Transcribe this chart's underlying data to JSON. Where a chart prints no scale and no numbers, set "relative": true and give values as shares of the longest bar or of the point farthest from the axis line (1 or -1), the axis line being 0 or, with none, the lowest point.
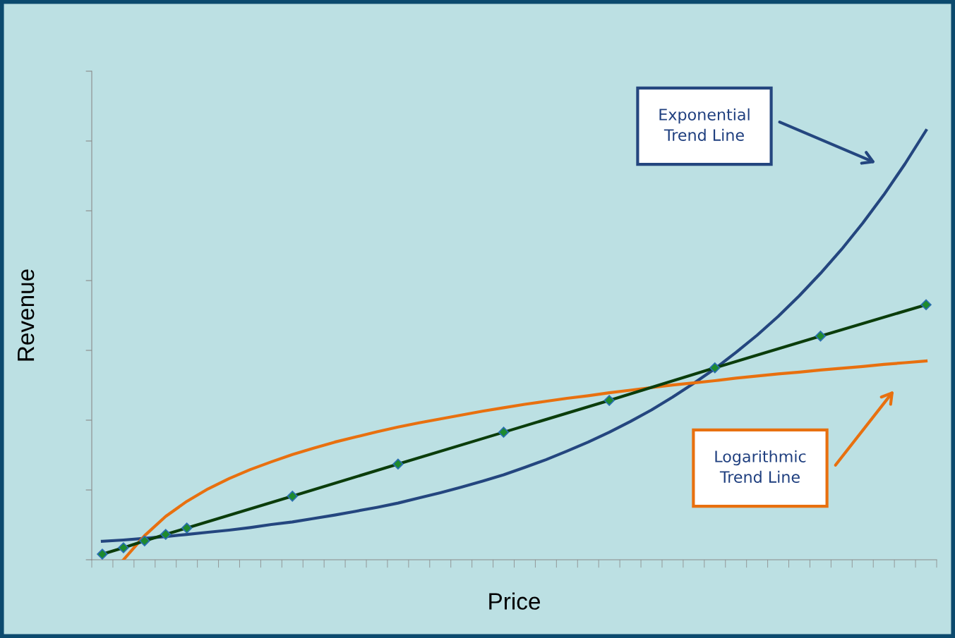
{
  "chart_data": {
    "type": "line",
    "relative": true,
    "xlabel": "Price",
    "ylabel": "Revenue",
    "categories": [
      null,
      null,
      null,
      null,
      null,
      null,
      null,
      null,
      null,
      null,
      null,
      null,
      null,
      null,
      null,
      null,
      null,
      null,
      null,
      null,
      null,
      null,
      null,
      null,
      null,
      null,
      null,
      null,
      null,
      null,
      null,
      null,
      null,
      null,
      null,
      null,
      null,
      null,
      null,
      null
    ],
    "series": [
      {
        "color": "#0b3d0b",
        "marker": "diamond",
        "values": [
          0.013,
          0.028,
          0.044,
          0.059,
          0.074,
          null,
          null,
          null,
          null,
          0.148,
          null,
          null,
          null,
          null,
          0.223,
          null,
          null,
          null,
          null,
          0.297,
          null,
          null,
          null,
          null,
          0.371,
          null,
          null,
          null,
          null,
          0.447,
          null,
          null,
          null,
          null,
          0.521,
          null,
          null,
          null,
          null,
          0.594
        ]
      },
      {
        "color": "#24467f",
        "values": [
          0.043,
          0.046,
          0.05,
          0.054,
          0.059,
          0.064,
          0.069,
          0.075,
          0.082,
          0.088,
          0.096,
          0.104,
          0.113,
          0.122,
          0.132,
          0.144,
          0.156,
          0.169,
          0.183,
          0.198,
          0.215,
          0.233,
          0.253,
          0.274,
          0.297,
          0.322,
          0.349,
          0.379,
          0.411,
          0.445,
          0.483,
          0.523,
          0.567,
          0.615,
          0.667,
          0.723,
          0.784,
          0.85,
          0.922,
          1.0
        ]
      },
      {
        "color": "#e8700f",
        "values": [
          null,
          0.0,
          0.056,
          0.101,
          0.136,
          0.165,
          0.189,
          0.21,
          0.228,
          0.245,
          0.26,
          0.274,
          0.286,
          0.298,
          0.309,
          0.319,
          0.328,
          0.337,
          0.346,
          0.354,
          0.362,
          0.369,
          0.376,
          0.382,
          0.389,
          0.395,
          0.401,
          0.407,
          0.412,
          0.417,
          0.423,
          0.428,
          0.433,
          0.437,
          0.442,
          0.446,
          0.45,
          0.455,
          0.459,
          0.463
        ]
      }
    ],
    "annotations": [
      "Exponential\nTrend Line",
      "Logarithmic\nTrend Line"
    ],
    "legend": false,
    "grid": false,
    "tick_labels": false
  }
}
